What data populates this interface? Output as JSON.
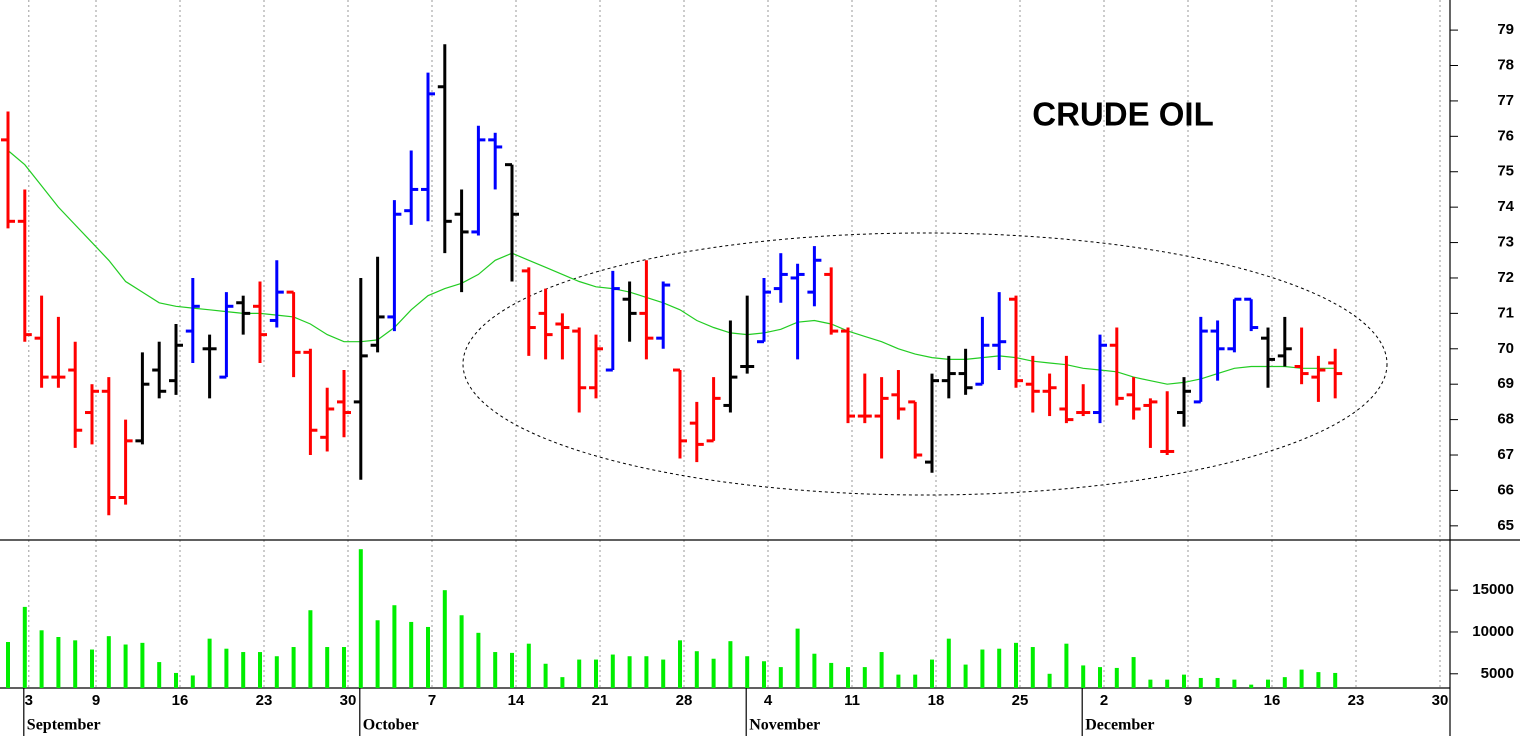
{
  "chart_data": {
    "type": "ohlc",
    "title": "CRUDE OIL",
    "categories": [
      null,
      "3",
      null,
      null,
      null,
      "9",
      null,
      null,
      null,
      null,
      "16",
      null,
      null,
      null,
      null,
      "23",
      null,
      null,
      null,
      null,
      "30",
      null,
      null,
      null,
      null,
      "7",
      null,
      null,
      null,
      null,
      "14",
      null,
      null,
      null,
      null,
      "21",
      null,
      null,
      null,
      null,
      "28",
      null,
      null,
      null,
      null,
      "4",
      null,
      null,
      null,
      null,
      "11",
      null,
      null,
      null,
      null,
      "18",
      null,
      null,
      null,
      null,
      "25",
      null,
      null,
      null,
      null,
      "2",
      null,
      null,
      null,
      null,
      "9",
      null,
      null,
      null,
      null,
      "16",
      null,
      null,
      null,
      null,
      "23",
      null,
      null,
      null,
      null,
      "30"
    ],
    "months": [
      null,
      "September",
      null,
      null,
      null,
      null,
      null,
      null,
      null,
      null,
      null,
      null,
      null,
      null,
      null,
      null,
      null,
      null,
      null,
      null,
      null,
      "October",
      null,
      null,
      null,
      null,
      null,
      null,
      null,
      null,
      null,
      null,
      null,
      null,
      null,
      null,
      null,
      null,
      null,
      null,
      null,
      null,
      null,
      null,
      "November",
      null,
      null,
      null,
      null,
      null,
      null,
      null,
      null,
      null,
      null,
      null,
      null,
      null,
      null,
      null,
      null,
      null,
      null,
      null,
      "December",
      null,
      null,
      null,
      null,
      null,
      null,
      null,
      null,
      null,
      null,
      null,
      null,
      null,
      null,
      null,
      null,
      null,
      null,
      null,
      null,
      null
    ],
    "open": [
      75.9,
      73.6,
      70.3,
      69.2,
      69.4,
      68.2,
      68.8,
      65.8,
      67.4,
      69.4,
      69.1,
      70.5,
      70.0,
      69.2,
      71.3,
      71.2,
      70.8,
      71.6,
      69.9,
      67.5,
      68.5,
      68.5,
      70.1,
      70.9,
      73.9,
      74.5,
      77.4,
      73.8,
      73.3,
      75.9,
      75.2,
      72.2,
      71.0,
      70.7,
      70.5,
      68.9,
      69.4,
      71.4,
      71.0,
      70.3,
      69.4,
      67.9,
      67.4,
      68.4,
      69.5,
      70.2,
      71.7,
      72.0,
      71.6,
      72.1,
      70.5,
      68.1,
      68.1,
      68.7,
      68.5,
      66.8,
      69.1,
      69.3,
      69.0,
      70.1,
      71.4,
      69.0,
      68.8,
      68.3,
      68.2,
      68.2,
      70.1,
      68.7,
      68.4,
      67.1,
      68.2,
      68.5,
      70.5,
      70.0,
      71.4,
      70.3,
      69.8,
      69.5,
      69.2,
      69.6,
      null,
      null,
      null,
      null,
      null,
      null
    ],
    "high": [
      76.7,
      74.5,
      71.5,
      70.9,
      70.2,
      69.0,
      69.2,
      68.0,
      69.9,
      70.2,
      70.7,
      72.0,
      70.4,
      71.6,
      71.5,
      71.9,
      72.5,
      71.6,
      70.0,
      68.9,
      69.4,
      72.0,
      72.6,
      74.2,
      75.6,
      77.8,
      78.6,
      74.5,
      76.3,
      76.1,
      75.2,
      72.3,
      71.7,
      71.0,
      70.6,
      70.4,
      72.2,
      71.9,
      72.5,
      71.9,
      69.4,
      68.5,
      69.2,
      70.8,
      71.5,
      72.0,
      72.7,
      72.4,
      72.9,
      72.3,
      70.6,
      69.3,
      69.2,
      69.4,
      68.5,
      69.3,
      69.8,
      70.0,
      70.9,
      71.6,
      71.5,
      69.8,
      69.3,
      69.8,
      69.0,
      70.4,
      70.6,
      69.2,
      68.6,
      68.8,
      69.2,
      70.9,
      70.8,
      71.4,
      71.4,
      70.6,
      70.9,
      70.6,
      69.8,
      70.0,
      null,
      null,
      null,
      null,
      null,
      null
    ],
    "low": [
      73.4,
      70.2,
      68.9,
      68.9,
      67.2,
      67.3,
      65.3,
      65.6,
      67.3,
      68.6,
      68.7,
      69.6,
      68.6,
      69.2,
      70.4,
      69.6,
      70.6,
      69.2,
      67.0,
      67.1,
      67.5,
      66.3,
      69.9,
      70.5,
      73.5,
      73.6,
      72.7,
      71.6,
      73.2,
      74.5,
      71.9,
      69.8,
      69.7,
      69.7,
      68.2,
      68.6,
      69.4,
      70.2,
      69.7,
      70.0,
      66.9,
      66.8,
      67.4,
      68.2,
      69.3,
      70.2,
      71.3,
      69.7,
      71.2,
      70.4,
      67.9,
      67.9,
      66.9,
      68.0,
      66.9,
      66.5,
      68.6,
      68.7,
      69.0,
      69.4,
      68.9,
      68.2,
      68.1,
      67.9,
      68.1,
      67.9,
      68.4,
      68.0,
      67.2,
      67.0,
      67.8,
      68.5,
      69.1,
      69.9,
      70.5,
      68.9,
      69.5,
      69.0,
      68.5,
      68.6,
      null,
      null,
      null,
      null,
      null,
      null
    ],
    "close": [
      73.6,
      70.4,
      69.2,
      69.2,
      67.7,
      68.8,
      65.8,
      67.4,
      69.0,
      68.8,
      70.1,
      71.2,
      70.0,
      71.2,
      71.0,
      70.4,
      71.6,
      69.9,
      67.7,
      68.3,
      68.2,
      69.8,
      70.9,
      73.8,
      74.5,
      77.2,
      73.6,
      73.3,
      75.9,
      75.7,
      73.8,
      70.6,
      70.4,
      70.6,
      68.9,
      70.0,
      71.7,
      71.0,
      70.3,
      71.8,
      67.4,
      67.3,
      68.6,
      69.2,
      69.5,
      71.6,
      72.1,
      72.1,
      72.5,
      70.5,
      68.1,
      68.1,
      68.6,
      68.3,
      67.0,
      69.1,
      69.3,
      68.9,
      70.1,
      70.2,
      69.1,
      68.8,
      68.9,
      68.0,
      68.2,
      70.1,
      68.6,
      68.3,
      68.5,
      67.1,
      68.8,
      70.5,
      70.0,
      71.4,
      70.6,
      69.7,
      70.0,
      69.3,
      69.4,
      69.3,
      null,
      null,
      null,
      null,
      null,
      null
    ],
    "colors": [
      "#ff0000",
      "#ff0000",
      "#ff0000",
      "#ff0000",
      "#ff0000",
      "#ff0000",
      "#ff0000",
      "#ff0000",
      "#000000",
      "#000000",
      "#000000",
      "#0000ff",
      "#000000",
      "#0000ff",
      "#000000",
      "#ff0000",
      "#0000ff",
      "#ff0000",
      "#ff0000",
      "#ff0000",
      "#ff0000",
      "#000000",
      "#000000",
      "#0000ff",
      "#0000ff",
      "#0000ff",
      "#000000",
      "#000000",
      "#0000ff",
      "#0000ff",
      "#000000",
      "#ff0000",
      "#ff0000",
      "#ff0000",
      "#ff0000",
      "#ff0000",
      "#0000ff",
      "#000000",
      "#ff0000",
      "#0000ff",
      "#ff0000",
      "#ff0000",
      "#ff0000",
      "#000000",
      "#000000",
      "#0000ff",
      "#0000ff",
      "#0000ff",
      "#0000ff",
      "#ff0000",
      "#ff0000",
      "#ff0000",
      "#ff0000",
      "#ff0000",
      "#ff0000",
      "#000000",
      "#000000",
      "#000000",
      "#0000ff",
      "#0000ff",
      "#ff0000",
      "#ff0000",
      "#ff0000",
      "#ff0000",
      "#ff0000",
      "#0000ff",
      "#ff0000",
      "#ff0000",
      "#ff0000",
      "#ff0000",
      "#000000",
      "#0000ff",
      "#0000ff",
      "#0000ff",
      "#0000ff",
      "#000000",
      "#000000",
      "#ff0000",
      "#ff0000",
      "#ff0000",
      null,
      null,
      null,
      null,
      null,
      null
    ],
    "ma": {
      "color": "#22cc22",
      "values": [
        75.6,
        75.2,
        74.6,
        74.0,
        73.5,
        73.0,
        72.5,
        71.9,
        71.6,
        71.3,
        71.2,
        71.15,
        71.1,
        71.05,
        71.0,
        71.0,
        70.95,
        70.9,
        70.7,
        70.4,
        70.2,
        70.2,
        70.25,
        70.6,
        71.1,
        71.5,
        71.7,
        71.85,
        72.1,
        72.5,
        72.7,
        72.5,
        72.3,
        72.1,
        71.9,
        71.75,
        71.7,
        71.6,
        71.45,
        71.3,
        71.1,
        70.8,
        70.6,
        70.45,
        70.4,
        70.45,
        70.55,
        70.75,
        70.8,
        70.7,
        70.5,
        70.35,
        70.2,
        70.0,
        69.85,
        69.75,
        69.7,
        69.7,
        69.75,
        69.8,
        69.75,
        69.65,
        69.6,
        69.55,
        69.45,
        69.4,
        69.35,
        69.2,
        69.1,
        69.0,
        69.05,
        69.15,
        69.3,
        69.45,
        69.5,
        69.5,
        69.5,
        69.45,
        69.45,
        69.45,
        null,
        null,
        null,
        null,
        null,
        null
      ]
    },
    "ylim": [
      64.6,
      79.85
    ],
    "yticks": [
      65,
      66,
      67,
      68,
      69,
      70,
      71,
      72,
      73,
      74,
      75,
      76,
      77,
      78,
      79
    ],
    "volume": {
      "color": "#00ee00",
      "values": [
        8800,
        13000,
        10200,
        9400,
        9000,
        7900,
        9500,
        8500,
        8700,
        6400,
        5100,
        4800,
        9200,
        8000,
        7600,
        7600,
        7100,
        8200,
        12600,
        8200,
        8200,
        19900,
        11400,
        13200,
        11200,
        10600,
        15000,
        12000,
        9900,
        7600,
        7500,
        8600,
        6200,
        4600,
        6700,
        6700,
        7300,
        7100,
        7100,
        6700,
        9000,
        7700,
        6800,
        8900,
        7100,
        6500,
        5800,
        10400,
        7400,
        6300,
        5800,
        5800,
        7600,
        4900,
        4900,
        6700,
        9200,
        6100,
        7900,
        8000,
        8700,
        8200,
        5000,
        8600,
        6000,
        5800,
        5700,
        7000,
        4300,
        4300,
        4900,
        4500,
        4500,
        4300,
        3700,
        4300,
        4600,
        5500,
        5200,
        5100,
        null,
        null,
        null,
        null,
        null,
        null
      ],
      "ylim": [
        3300,
        21000
      ],
      "yticks": [
        5000,
        10000,
        15000
      ]
    }
  }
}
